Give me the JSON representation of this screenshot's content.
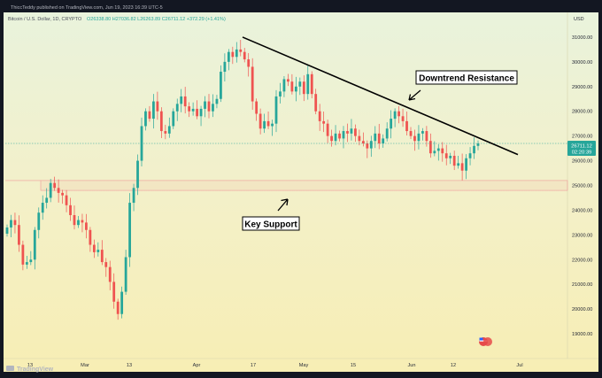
{
  "header": {
    "published": "ThiccTeddy published on TradingView.com, Jun 19, 2023 16:39 UTC-5",
    "symbol": "Bitcoin / U.S. Dollar, 1D, CRYPTO",
    "ohlc": "O26338.80 H27036.82 L26263.89 C26711.12 +372.29 (+1.41%)",
    "currency": "USD"
  },
  "footer": {
    "brand": "TradingView"
  },
  "colors": {
    "up": "#26a69a",
    "down": "#ef5350",
    "line": "#000000"
  },
  "price_label": {
    "price": "26711.12",
    "time": "02:20:39"
  },
  "annotations": {
    "resistance": "Downtrend Resistance",
    "support": "Key Support"
  },
  "chart_data": {
    "type": "candlestick",
    "title": "Bitcoin / U.S. Dollar, 1D, CRYPTO",
    "ylim": [
      18000,
      32000
    ],
    "y_ticks": [
      19000,
      20000,
      21000,
      22000,
      23000,
      24000,
      25000,
      26000,
      27000,
      28000,
      29000,
      30000,
      31000
    ],
    "x_ticks": [
      "13",
      "Mar",
      "13",
      "Apr",
      "17",
      "May",
      "15",
      "Jun",
      "12",
      "Jul"
    ],
    "support_zone": [
      24800,
      25200
    ],
    "trendline": [
      [
        0,
        31000
      ],
      [
        1,
        26250
      ]
    ],
    "closes": [
      23300,
      23600,
      23400,
      22600,
      21800,
      21900,
      22000,
      23200,
      23900,
      24300,
      24500,
      25100,
      24900,
      24700,
      24600,
      24200,
      23800,
      23400,
      23600,
      23500,
      23200,
      22600,
      22300,
      22400,
      21900,
      21700,
      21100,
      20300,
      19800,
      20700,
      22100,
      24300,
      24900,
      26000,
      27400,
      28000,
      27700,
      28400,
      28000,
      27200,
      27100,
      27400,
      28000,
      28300,
      28600,
      28200,
      28000,
      28100,
      27800,
      28100,
      28400,
      28000,
      28300,
      28500,
      29600,
      30000,
      30400,
      30200,
      30500,
      30400,
      30100,
      29800,
      28400,
      27900,
      27300,
      27600,
      27400,
      27500,
      28600,
      28800,
      29300,
      29200,
      28800,
      29000,
      29200,
      28700,
      29500,
      28700,
      28000,
      27600,
      27500,
      27000,
      26800,
      27100,
      26900,
      27200,
      27100,
      27300,
      27000,
      26800,
      26700,
      26500,
      26800,
      27100,
      26700,
      26900,
      27300,
      27700,
      28000,
      27800,
      27600,
      27200,
      27000,
      26800,
      27100,
      27200,
      26800,
      26300,
      26400,
      26500,
      26300,
      26100,
      26200,
      25800,
      25900,
      25600,
      26100,
      26300,
      26600,
      26700
    ]
  }
}
